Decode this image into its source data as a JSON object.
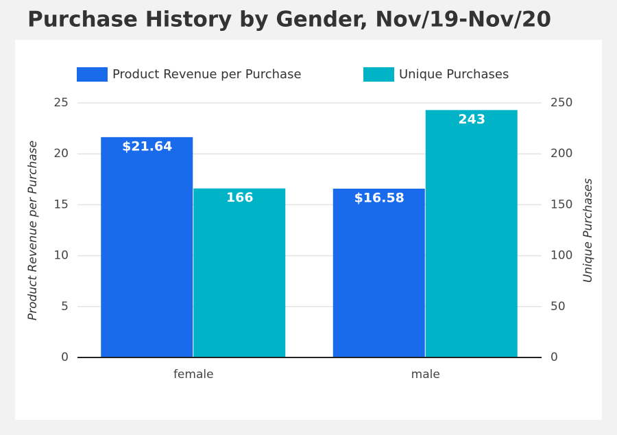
{
  "chart_data": {
    "type": "bar",
    "title": "Purchase History by Gender, Nov/19-Nov/20",
    "categories": [
      "female",
      "male"
    ],
    "series": [
      {
        "name": "Product Revenue per Purchase",
        "color": "#1a6bec",
        "values": [
          21.64,
          16.58
        ],
        "value_labels": [
          "$21.64",
          "$16.58"
        ],
        "axis": "y"
      },
      {
        "name": "Unique Purchases",
        "color": "#00b3c7",
        "values": [
          166,
          243
        ],
        "axis": "y2"
      }
    ],
    "ylabel": "Product Revenue per Purchase",
    "y2label": "Unique Purchases",
    "ylim": [
      0,
      25
    ],
    "yticks": [
      0,
      5,
      10,
      15,
      20,
      25
    ],
    "y2lim": [
      0,
      250
    ],
    "y2ticks": [
      0,
      50,
      100,
      150,
      200,
      250
    ],
    "grid": true,
    "legend": "top"
  }
}
